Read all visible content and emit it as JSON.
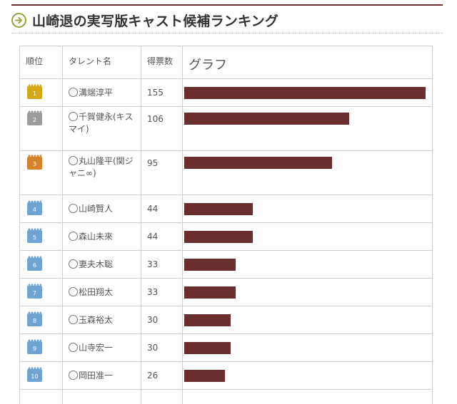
{
  "header": {
    "title": "山崎退の実写版キャスト候補ランキング",
    "icon": "arrow-circle-icon",
    "accent": "#6b2e2e"
  },
  "table": {
    "columns": {
      "rank": "順位",
      "name": "タレント名",
      "votes": "得票数",
      "graph": "グラフ"
    },
    "bar_color": "#6b2e2e",
    "max_votes": 155,
    "rows": [
      {
        "rank": "1",
        "medal": "gold",
        "name": "溝端淳平",
        "votes": "155"
      },
      {
        "rank": "2",
        "medal": "silver",
        "name": "千賀健永(キスマイ)",
        "votes": "106"
      },
      {
        "rank": "3",
        "medal": "bronze",
        "name": "丸山隆平(関ジャニ∞)",
        "votes": "95"
      },
      {
        "rank": "4",
        "medal": "blue",
        "name": "山崎賢人",
        "votes": "44"
      },
      {
        "rank": "5",
        "medal": "blue",
        "name": "森山未來",
        "votes": "44"
      },
      {
        "rank": "6",
        "medal": "blue",
        "name": "妻夫木聡",
        "votes": "33"
      },
      {
        "rank": "7",
        "medal": "blue",
        "name": "松田翔太",
        "votes": "33"
      },
      {
        "rank": "8",
        "medal": "blue",
        "name": "玉森裕太",
        "votes": "30"
      },
      {
        "rank": "9",
        "medal": "blue",
        "name": "山寺宏一",
        "votes": "30"
      },
      {
        "rank": "10",
        "medal": "blue",
        "name": "岡田准一",
        "votes": "26"
      }
    ]
  }
}
